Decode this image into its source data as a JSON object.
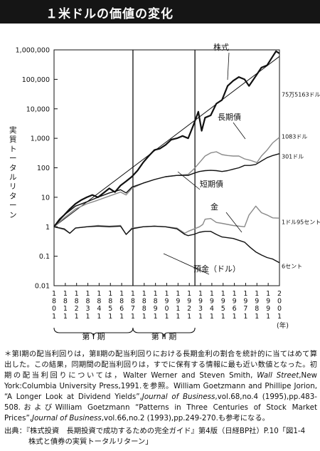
{
  "header": {
    "title": "１米ドルの価値の変化"
  },
  "chart_data": {
    "type": "line",
    "ylabel": "実質トータルリターン",
    "yscale": "log",
    "ylim": [
      0.01,
      1000000
    ],
    "y_ticks": [
      "1,000,000",
      "100,000",
      "10,000",
      "1,000",
      "100",
      "10",
      "1",
      "0.1",
      "0.01"
    ],
    "xlim": [
      1801,
      2001
    ],
    "x_ticks": [
      "1801",
      "1811",
      "1821",
      "1831",
      "1841",
      "1851",
      "1861",
      "1871",
      "1881",
      "1891",
      "1901",
      "1911",
      "1921",
      "1931",
      "1941",
      "1951",
      "1961",
      "1971",
      "1981",
      "1991",
      "2001"
    ],
    "x_unit": "(年)",
    "period_dividers": [
      1871,
      1926
    ],
    "periods": [
      {
        "label": "第 I 期",
        "from": 1801,
        "to": 1871
      },
      {
        "label": "第 II 期",
        "from": 1871,
        "to": 1926
      }
    ],
    "trend_line": {
      "from": [
        1801,
        1
      ],
      "to": [
        2001,
        600000
      ]
    },
    "series": [
      {
        "name": "株式",
        "end_label": "75万5163ドル",
        "x": [
          1801,
          1806,
          1810,
          1815,
          1820,
          1825,
          1830,
          1835,
          1840,
          1845,
          1850,
          1855,
          1860,
          1865,
          1870,
          1875,
          1880,
          1885,
          1890,
          1895,
          1900,
          1905,
          1910,
          1915,
          1920,
          1925,
          1929,
          1932,
          1935,
          1940,
          1945,
          1950,
          1955,
          1960,
          1965,
          1970,
          1974,
          1980,
          1985,
          1990,
          1995,
          1998,
          2001
        ],
        "y": [
          1,
          1.8,
          2.5,
          4,
          6,
          8,
          10,
          12,
          10,
          14,
          20,
          15,
          25,
          35,
          50,
          80,
          150,
          250,
          400,
          450,
          600,
          900,
          1000,
          1200,
          1000,
          3000,
          8000,
          1800,
          5000,
          6000,
          15000,
          20000,
          60000,
          90000,
          120000,
          100000,
          60000,
          130000,
          250000,
          300000,
          600000,
          900000,
          755163
        ]
      },
      {
        "name": "長期債",
        "end_label": "1083ドル",
        "x": [
          1801,
          1810,
          1820,
          1830,
          1840,
          1850,
          1860,
          1865,
          1870,
          1880,
          1890,
          1900,
          1910,
          1920,
          1925,
          1930,
          1935,
          1940,
          1945,
          1950,
          1955,
          1960,
          1965,
          1970,
          1975,
          1981,
          1985,
          1990,
          1995,
          2001
        ],
        "y": [
          1,
          2,
          4,
          6,
          8,
          11,
          15,
          12,
          20,
          30,
          40,
          50,
          55,
          60,
          90,
          150,
          250,
          320,
          350,
          280,
          260,
          250,
          250,
          200,
          180,
          150,
          250,
          400,
          700,
          1083
        ]
      },
      {
        "name": "短期債",
        "end_label": "301ドル",
        "x": [
          1801,
          1810,
          1820,
          1830,
          1840,
          1850,
          1860,
          1865,
          1870,
          1880,
          1890,
          1900,
          1910,
          1920,
          1925,
          1930,
          1935,
          1940,
          1945,
          1950,
          1955,
          1960,
          1965,
          1970,
          1975,
          1980,
          1985,
          1990,
          1995,
          2001
        ],
        "y": [
          1,
          2.5,
          5,
          7,
          10,
          14,
          18,
          14,
          22,
          30,
          40,
          50,
          55,
          55,
          65,
          75,
          80,
          82,
          80,
          75,
          80,
          90,
          100,
          120,
          120,
          130,
          170,
          220,
          260,
          301
        ]
      },
      {
        "name": "金",
        "end_label": "1ドル95セント",
        "x": [
          1801,
          1810,
          1815,
          1820,
          1830,
          1840,
          1850,
          1860,
          1865,
          1870,
          1880,
          1890,
          1900,
          1910,
          1917,
          1920,
          1930,
          1933,
          1935,
          1940,
          1945,
          1950,
          1960,
          1970,
          1974,
          1980,
          1985,
          1990,
          1995,
          2001
        ],
        "y": [
          1,
          0.8,
          0.6,
          0.9,
          1,
          1.1,
          1.05,
          1.1,
          0.55,
          0.9,
          1,
          1.05,
          1,
          0.9,
          0.6,
          0.7,
          1,
          1.2,
          1.8,
          1.9,
          1.4,
          1.3,
          1.1,
          1,
          2.5,
          5,
          3,
          2.5,
          2,
          1.95
        ]
      },
      {
        "name": "預金（ドル）",
        "end_label": "6セント",
        "x": [
          1801,
          1810,
          1815,
          1820,
          1830,
          1840,
          1850,
          1860,
          1865,
          1870,
          1880,
          1890,
          1900,
          1910,
          1917,
          1920,
          1925,
          1930,
          1935,
          1940,
          1945,
          1950,
          1960,
          1970,
          1975,
          1980,
          1985,
          1990,
          1995,
          2001
        ],
        "y": [
          1,
          0.85,
          0.6,
          0.9,
          1,
          1.05,
          1,
          1.05,
          0.55,
          0.85,
          1,
          1.05,
          1,
          0.85,
          0.55,
          0.5,
          0.55,
          0.65,
          0.7,
          0.7,
          0.55,
          0.45,
          0.4,
          0.3,
          0.2,
          0.14,
          0.11,
          0.09,
          0.08,
          0.06
        ]
      }
    ]
  },
  "note": {
    "part1": "＊第Ⅰ期の配当利回りは，第Ⅱ期の配当利回りにおける長期金利の割合を統計的に当てはめて算出した。この結果，同期間の配当利回りは，すでに保有する情報に最も近い数値となった。初期の配当利回りについては，",
    "part2": "Walter Werner and Steven Smith, ",
    "part3": "Wall Street",
    "part4": ",New York:Columbia University Press,1991.を参照。William Goetzmann and Phillipe Jorion, “A Longer Look at Dividend Yields”,",
    "part5": "Journal of Business",
    "part6": ",vol.68,no.4 (1995),pp.483-508.およびWilliam Goetzmann “Patterns in Three Centuries of Stock Market Prices”,",
    "part7": "Journal of Business",
    "part8": ",vol.66,no.2 (1993),pp.249-270.も参考になる。"
  },
  "source": {
    "line1": "出典：『株式投資　長期投資で成功するための完全ガイド』第4版（日経BP社）P.10「図1-4",
    "line2": "株式と債券の実質トータルリターン」"
  }
}
